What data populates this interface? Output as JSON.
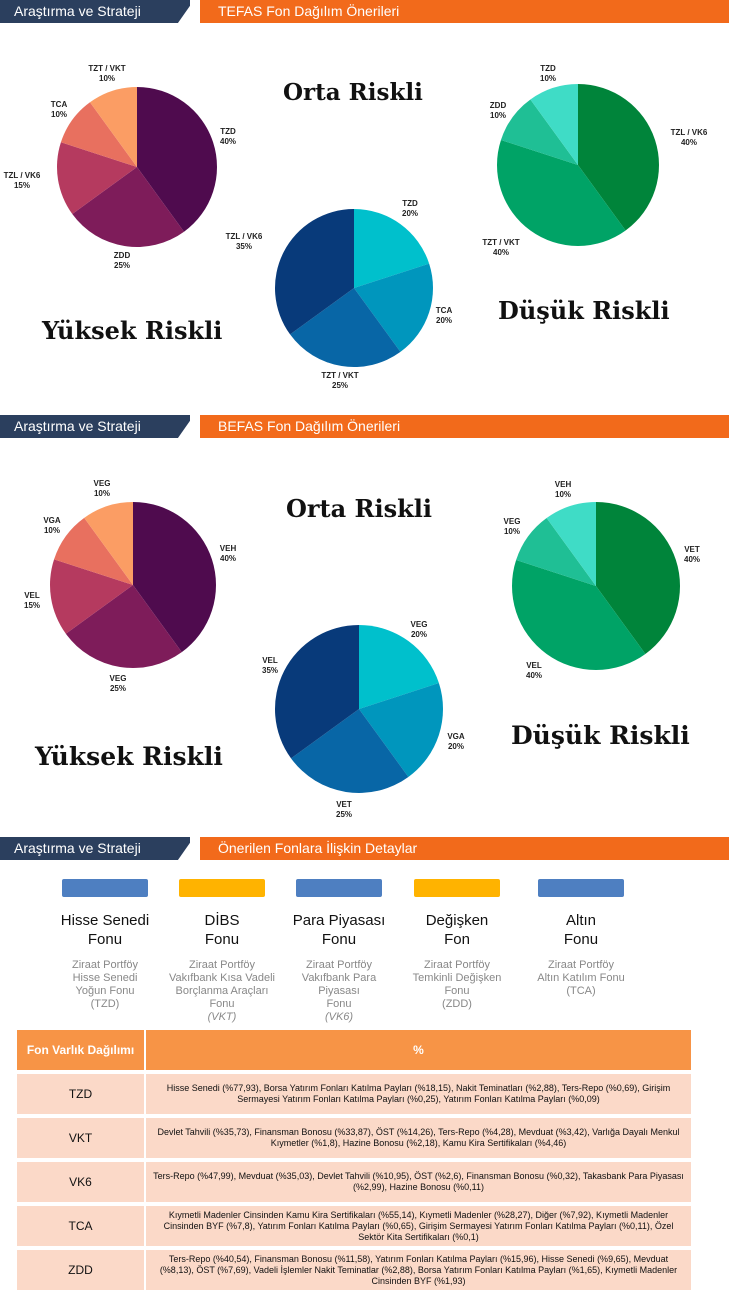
{
  "sections": [
    {
      "left_label": "Araştırma ve Strateji",
      "right_label": "TEFAS Fon Dağılım Önerileri"
    },
    {
      "left_label": "Araştırma ve Strateji",
      "right_label": "BEFAS Fon Dağılım Önerileri"
    },
    {
      "left_label": "Araştırma ve Strateji",
      "right_label": "Önerilen Fonlara İlişkin Detaylar"
    }
  ],
  "risk_titles": {
    "tefas": {
      "high": "Yüksek Riskli",
      "mid": "Orta Riskli",
      "low": "Düşük Riskli"
    },
    "befas": {
      "high": "Yüksek Riskli",
      "mid": "Orta Riskli",
      "low": "Düşük Riskli"
    }
  },
  "chart_data": [
    {
      "type": "pie",
      "id": "tefas-high",
      "title": "Yüksek Riskli",
      "slices": [
        {
          "label": "TZD",
          "value": 40,
          "value_label": "40%",
          "color": "#4f0b4e"
        },
        {
          "label": "ZDD",
          "value": 25,
          "value_label": "25%",
          "color": "#7e1c5a"
        },
        {
          "label": "TZL / VK6",
          "value": 15,
          "value_label": "15%",
          "color": "#b53a5f"
        },
        {
          "label": "TCA",
          "value": 10,
          "value_label": "10%",
          "color": "#e8705f"
        },
        {
          "label": "TZT / VKT",
          "value": 10,
          "value_label": "10%",
          "color": "#fb9d64"
        }
      ]
    },
    {
      "type": "pie",
      "id": "tefas-mid",
      "title": "Orta Riskli",
      "slices": [
        {
          "label": "TZD",
          "value": 20,
          "value_label": "20%",
          "color": "#00c0cc"
        },
        {
          "label": "TCA",
          "value": 20,
          "value_label": "20%",
          "color": "#0096bd"
        },
        {
          "label": "TZT / VKT",
          "value": 25,
          "value_label": "25%",
          "color": "#0866a6"
        },
        {
          "label": "TZL / VK6",
          "value": 35,
          "value_label": "35%",
          "color": "#083a7a"
        }
      ]
    },
    {
      "type": "pie",
      "id": "tefas-low",
      "title": "Düşük Riskli",
      "slices": [
        {
          "label": "TZL / VK6",
          "value": 40,
          "value_label": "40%",
          "color": "#00843a"
        },
        {
          "label": "TZT / VKT",
          "value": 40,
          "value_label": "40%",
          "color": "#00a366"
        },
        {
          "label": "ZDD",
          "value": 10,
          "value_label": "10%",
          "color": "#1fbf95"
        },
        {
          "label": "TZD",
          "value": 10,
          "value_label": "10%",
          "color": "#3fdcc6"
        }
      ]
    },
    {
      "type": "pie",
      "id": "befas-high",
      "title": "Yüksek Riskli",
      "slices": [
        {
          "label": "VEH",
          "value": 40,
          "value_label": "40%",
          "color": "#4f0b4e"
        },
        {
          "label": "VEG",
          "value": 25,
          "value_label": "25%",
          "color": "#7e1c5a"
        },
        {
          "label": "VEL",
          "value": 15,
          "value_label": "15%",
          "color": "#b53a5f"
        },
        {
          "label": "VGA",
          "value": 10,
          "value_label": "10%",
          "color": "#e8705f"
        },
        {
          "label": "VEG",
          "value": 10,
          "value_label": "10%",
          "color": "#fb9d64"
        }
      ]
    },
    {
      "type": "pie",
      "id": "befas-mid",
      "title": "Orta Riskli",
      "slices": [
        {
          "label": "VEG",
          "value": 20,
          "value_label": "20%",
          "color": "#00c0cc"
        },
        {
          "label": "VGA",
          "value": 20,
          "value_label": "20%",
          "color": "#0096bd"
        },
        {
          "label": "VET",
          "value": 25,
          "value_label": "25%",
          "color": "#0866a6"
        },
        {
          "label": "VEL",
          "value": 35,
          "value_label": "35%",
          "color": "#083a7a"
        }
      ]
    },
    {
      "type": "pie",
      "id": "befas-low",
      "title": "Düşük Riskli",
      "slices": [
        {
          "label": "VET",
          "value": 40,
          "value_label": "40%",
          "color": "#00843a"
        },
        {
          "label": "VEL",
          "value": 40,
          "value_label": "40%",
          "color": "#00a366"
        },
        {
          "label": "VEG",
          "value": 10,
          "value_label": "10%",
          "color": "#1fbf95"
        },
        {
          "label": "VEH",
          "value": 10,
          "value_label": "10%",
          "color": "#3fdcc6"
        }
      ]
    }
  ],
  "funds": [
    {
      "bar_color": "#4e7fc1",
      "name_line1": "Hisse Senedi",
      "name_line2": "Fonu",
      "desc": "Ziraat Portföy\nHisse Senedi\nYoğun Fonu\n(TZD)"
    },
    {
      "bar_color": "#ffb300",
      "name_line1": "DİBS",
      "name_line2": "Fonu",
      "desc": "Ziraat Portföy\nVakıfbank Kısa Vadeli\nBorçlanma Araçları\nFonu\n(VKT)"
    },
    {
      "bar_color": "#4e7fc1",
      "name_line1": "Para Piyasası",
      "name_line2": "Fonu",
      "desc": "Ziraat Portföy\nVakıfbank Para\nPiyasası\nFonu\n(VK6)"
    },
    {
      "bar_color": "#ffb300",
      "name_line1": "Değişken",
      "name_line2": "Fon",
      "desc": "Ziraat Portföy\nTemkinli Değişken\nFonu\n(ZDD)"
    },
    {
      "bar_color": "#4e7fc1",
      "name_line1": "Altın",
      "name_line2": "Fonu",
      "desc": "Ziraat Portföy\nAltın Katılım Fonu\n(TCA)"
    }
  ],
  "table": {
    "header_col1": "Fon Varlık Dağılımı",
    "header_col2": "%",
    "rows": [
      {
        "code": "TZD",
        "detail": "Hisse Senedi (%77,93), Borsa Yatırım Fonları Katılma Payları (%18,15), Nakit Teminatları (%2,88), Ters-Repo (%0,69), Girişim Sermayesi Yatırım Fonları Katılma Payları (%0,25), Yatırım Fonları Katılma Payları (%0,09)"
      },
      {
        "code": "VKT",
        "detail": "Devlet Tahvili (%35,73), Finansman Bonosu (%33,87), ÖST (%14,26), Ters-Repo (%4,28), Mevduat (%3,42), Varlığa Dayalı Menkul Kıymetler (%1,8), Hazine Bonosu (%2,18), Kamu Kira Sertifikaları (%4,46)"
      },
      {
        "code": "VK6",
        "detail": "Ters-Repo (%47,99), Mevduat (%35,03), Devlet Tahvili (%10,95), ÖST (%2,6), Finansman Bonosu (%0,32), Takasbank Para Piyasası (%2,99), Hazine Bonosu (%0,11)"
      },
      {
        "code": "TCA",
        "detail": "Kıymetli Madenler Cinsinden Kamu Kira Sertifikaları (%55,14), Kıymetli Madenler (%28,27), Diğer (%7,92), Kıymetli Madenler Cinsinden BYF (%7,8), Yatırım Fonları Katılma Payları (%0,65), Girişim Sermayesi Yatırım Fonları Katılma Payları (%0,11), Özel Sektör Kita Sertifikaları (%0,1)"
      },
      {
        "code": "ZDD",
        "detail": "Ters-Repo (%40,54), Finansman Bonosu (%11,58), Yatırım Fonları Katılma Payları (%15,96), Hisse Senedi (%9,65), Mevduat (%8,13), ÖST (%7,69), Vadeli İşlemler Nakit Teminatlar (%2,88), Borsa Yatırım Fonları Katılma Payları (%1,65), Kıymetli Madenler Cinsinden BYF (%1,93)"
      }
    ]
  }
}
